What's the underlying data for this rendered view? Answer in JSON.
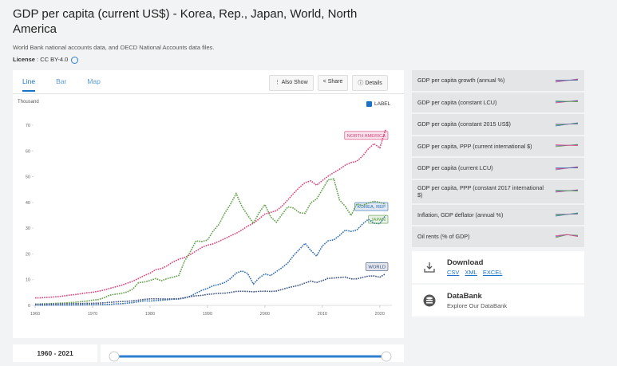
{
  "header": {
    "title": "GDP per capita (current US$) - Korea, Rep., Japan, World, North America",
    "subtitle": "World Bank national accounts data, and OECD National Accounts data files.",
    "license": {
      "label": "License",
      "value": ": CC BY-4.0"
    }
  },
  "tabs": [
    "Line",
    "Bar",
    "Map"
  ],
  "buttons": [
    "Also Show",
    "Share",
    "Details"
  ],
  "label_toggle": "LABEL",
  "range_label": "1960 - 2021",
  "indicators": [
    "GDP per capita growth (annual %)",
    "GDP per capita (constant LCU)",
    "GDP per capita (constant 2015 US$)",
    "GDP per capita, PPP (current international $)",
    "GDP per capita (current LCU)",
    "GDP per capita, PPP (constant 2017 international $)",
    "Inflation, GDP deflator (annual %)",
    "Oil rents (% of GDP)"
  ],
  "download": {
    "title": "Download",
    "formats": [
      "CSV",
      "XML",
      "EXCEL"
    ]
  },
  "databank": {
    "title": "DataBank",
    "subtitle": "Explore Our DataBank"
  },
  "chart_data": {
    "type": "line",
    "y_label": "Thousand",
    "x": [
      1960,
      1961,
      1962,
      1963,
      1964,
      1965,
      1966,
      1967,
      1968,
      1969,
      1970,
      1971,
      1972,
      1973,
      1974,
      1975,
      1976,
      1977,
      1978,
      1979,
      1980,
      1981,
      1982,
      1983,
      1984,
      1985,
      1986,
      1987,
      1988,
      1989,
      1990,
      1991,
      1992,
      1993,
      1994,
      1995,
      1996,
      1997,
      1998,
      1999,
      2000,
      2001,
      2002,
      2003,
      2004,
      2005,
      2006,
      2007,
      2008,
      2009,
      2010,
      2011,
      2012,
      2013,
      2014,
      2015,
      2016,
      2017,
      2018,
      2019,
      2020,
      2021
    ],
    "xlim": [
      1960,
      2021
    ],
    "xticks": [
      1960,
      1970,
      1980,
      1990,
      2000,
      2010,
      2020
    ],
    "ylim": [
      0,
      70
    ],
    "yticks": [
      0,
      10,
      20,
      30,
      40,
      50,
      60,
      70
    ],
    "series": [
      {
        "name": "NORTH AMERICA",
        "color": "#d9427c",
        "values": [
          2.9,
          2.95,
          3.1,
          3.23,
          3.42,
          3.68,
          3.99,
          4.2,
          4.54,
          4.89,
          5.13,
          5.5,
          5.98,
          6.62,
          7.2,
          7.8,
          8.6,
          9.4,
          10.45,
          11.6,
          12.5,
          13.9,
          14.3,
          15.4,
          16.9,
          17.9,
          18.6,
          19.7,
          21.1,
          22.5,
          23.4,
          23.9,
          24.9,
          25.9,
          27.0,
          28.0,
          29.3,
          30.8,
          31.9,
          33.6,
          35.5,
          36.1,
          36.8,
          38.6,
          41.0,
          43.5,
          45.8,
          47.7,
          48.4,
          46.7,
          48.5,
          50.2,
          51.6,
          52.9,
          54.5,
          55.5,
          56.0,
          58.0,
          60.8,
          62.8,
          61.2,
          68.2
        ]
      },
      {
        "name": "KOREA, REP",
        "color": "#2f6db5",
        "values": [
          0.16,
          0.09,
          0.11,
          0.15,
          0.12,
          0.11,
          0.13,
          0.16,
          0.19,
          0.24,
          0.28,
          0.31,
          0.33,
          0.42,
          0.58,
          0.64,
          0.85,
          1.08,
          1.42,
          1.77,
          1.7,
          1.88,
          1.99,
          2.2,
          2.41,
          2.48,
          2.83,
          3.55,
          4.75,
          5.82,
          6.61,
          7.64,
          8.13,
          8.89,
          10.39,
          12.56,
          13.4,
          12.4,
          8.29,
          10.67,
          12.26,
          11.56,
          13.17,
          14.67,
          16.5,
          19.4,
          21.74,
          24.09,
          21.35,
          19.14,
          23.08,
          25.1,
          25.46,
          27.18,
          29.25,
          28.73,
          29.29,
          31.6,
          33.45,
          31.9,
          31.72,
          34.98
        ]
      },
      {
        "name": "JAPAN",
        "color": "#5fa048",
        "values": [
          0.48,
          0.56,
          0.63,
          0.72,
          0.84,
          0.92,
          1.06,
          1.23,
          1.45,
          1.67,
          2.04,
          2.27,
          2.95,
          3.99,
          4.35,
          4.66,
          5.2,
          6.34,
          8.82,
          9.1,
          9.66,
          10.42,
          9.58,
          10.43,
          10.98,
          11.58,
          17.11,
          20.75,
          25.05,
          24.81,
          25.36,
          28.93,
          31.46,
          35.77,
          39.27,
          43.44,
          38.44,
          35.02,
          31.9,
          36.03,
          39.17,
          34.41,
          32.29,
          35.39,
          38.3,
          37.81,
          35.99,
          35.78,
          39.88,
          41.31,
          44.97,
          48.76,
          49.15,
          40.9,
          38.48,
          34.96,
          39.38,
          38.83,
          39.75,
          40.42,
          40.04,
          39.31
        ]
      },
      {
        "name": "WORLD",
        "color": "#3b5180",
        "values": [
          0.46,
          0.47,
          0.5,
          0.53,
          0.57,
          0.61,
          0.65,
          0.68,
          0.72,
          0.79,
          0.81,
          0.88,
          0.99,
          1.2,
          1.36,
          1.49,
          1.6,
          1.78,
          2.05,
          2.35,
          2.55,
          2.56,
          2.49,
          2.48,
          2.53,
          2.6,
          3.0,
          3.4,
          3.74,
          3.87,
          4.3,
          4.47,
          4.71,
          4.74,
          5.04,
          5.43,
          5.5,
          5.43,
          5.3,
          5.46,
          5.53,
          5.43,
          5.57,
          6.21,
          6.88,
          7.35,
          7.86,
          8.72,
          9.46,
          8.88,
          9.6,
          10.5,
          10.64,
          10.84,
          11.0,
          10.27,
          10.32,
          10.87,
          11.4,
          11.44,
          10.95,
          12.26
        ]
      }
    ]
  }
}
